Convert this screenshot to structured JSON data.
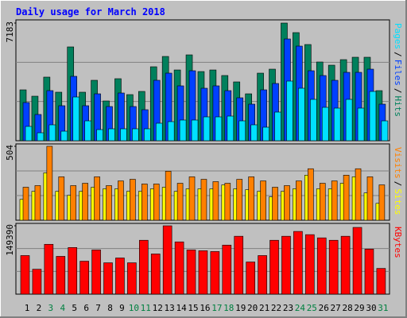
{
  "chart_data": [
    {
      "type": "bar",
      "title": "Daily usage for March 2018",
      "ylim": [
        0,
        7183
      ],
      "yticks": [
        7183
      ],
      "separator": "/",
      "series": [
        {
          "name": "Hits",
          "color": "#00805c",
          "values": [
            3106,
            2718,
            3883,
            2961,
            5727,
            2961,
            3689,
            2427,
            3786,
            2815,
            3009,
            4514,
            5144,
            4319,
            5241,
            4222,
            4319,
            3980,
            3591,
            2863,
            4125,
            4368,
            7183,
            6600,
            5872,
            4805,
            4610,
            4950,
            5096,
            5096,
            3057
          ]
        },
        {
          "name": "Files",
          "color": "#0040ff",
          "values": [
            2330,
            1602,
            3058,
            2136,
            3931,
            2136,
            2863,
            2087,
            2912,
            2087,
            1893,
            3689,
            4125,
            3349,
            4271,
            3203,
            3349,
            3057,
            2621,
            2232,
            3106,
            3494,
            6212,
            5775,
            4271,
            3979,
            3688,
            4174,
            4174,
            4368,
            2232
          ]
        },
        {
          "name": "Pages",
          "color": "#00e0ff",
          "values": [
            874,
            485,
            971,
            582,
            2669,
            1213,
            679,
            728,
            728,
            728,
            728,
            1068,
            1165,
            1262,
            1262,
            1456,
            1456,
            1504,
            1213,
            971,
            825,
            1747,
            3640,
            3203,
            2524,
            2038,
            1990,
            2524,
            1990,
            3009,
            1213
          ]
        }
      ]
    },
    {
      "type": "bar",
      "ylim": [
        0,
        504
      ],
      "yticks": [
        504
      ],
      "separator": "/",
      "series": [
        {
          "name": "Sites",
          "color": "#ffff00",
          "values": [
            142,
            197,
            323,
            197,
            170,
            197,
            225,
            214,
            214,
            197,
            197,
            214,
            225,
            197,
            214,
            214,
            214,
            241,
            214,
            208,
            197,
            159,
            197,
            214,
            307,
            214,
            214,
            252,
            296,
            186,
            115
          ]
        },
        {
          "name": "Visits",
          "color": "#ff8000",
          "values": [
            225,
            236,
            504,
            296,
            236,
            252,
            296,
            236,
            268,
            279,
            247,
            247,
            334,
            252,
            296,
            279,
            263,
            252,
            279,
            296,
            268,
            225,
            236,
            268,
            351,
            252,
            268,
            307,
            351,
            296,
            241
          ]
        }
      ]
    },
    {
      "type": "bar",
      "ylim": [
        0,
        149390
      ],
      "yticks": [
        149390
      ],
      "categories": [
        "1",
        "2",
        "3",
        "4",
        "5",
        "6",
        "7",
        "8",
        "9",
        "10",
        "11",
        "12",
        "13",
        "14",
        "15",
        "16",
        "17",
        "18",
        "19",
        "20",
        "21",
        "22",
        "23",
        "24",
        "25",
        "26",
        "27",
        "28",
        "29",
        "30",
        "31"
      ],
      "category_colors": [
        "#000000",
        "#000000",
        "#008040",
        "#008040",
        "#000000",
        "#000000",
        "#000000",
        "#000000",
        "#000000",
        "#008040",
        "#008040",
        "#000000",
        "#000000",
        "#000000",
        "#000000",
        "#000000",
        "#008040",
        "#008040",
        "#000000",
        "#000000",
        "#000000",
        "#000000",
        "#000000",
        "#008040",
        "#008040",
        "#000000",
        "#000000",
        "#000000",
        "#000000",
        "#000000",
        "#008040"
      ],
      "series": [
        {
          "name": "KBytes",
          "color": "#ff0000",
          "values": [
            84360,
            54483,
            108965,
            82603,
            101935,
            72058,
            96663,
            68543,
            79088,
            68543,
            117753,
            87875,
            149390,
            114238,
            96663,
            94905,
            93148,
            107208,
            126540,
            70300,
            84360,
            117753,
            126540,
            137085,
            130055,
            123025,
            117753,
            126540,
            145873,
            98420,
            56240
          ]
        }
      ]
    }
  ]
}
